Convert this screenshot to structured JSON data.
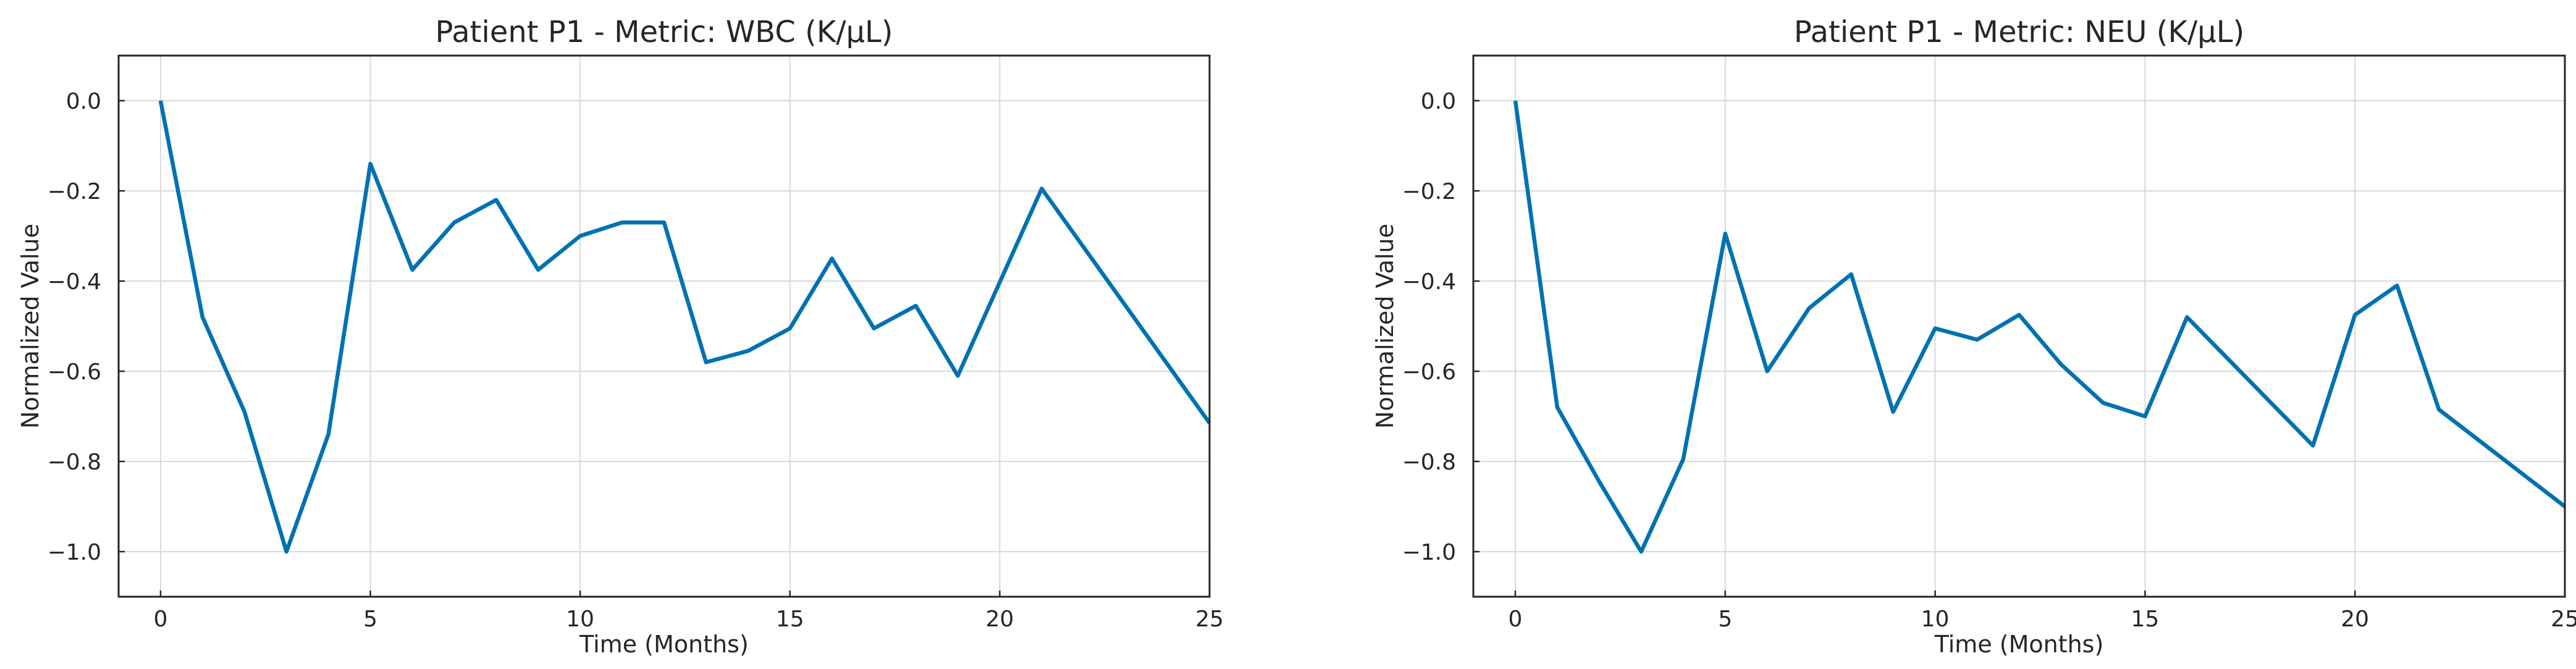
{
  "chart_data": [
    {
      "type": "line",
      "title": "Patient P1 - Metric: WBC (K/µL)",
      "xlabel": "Time (Months)",
      "ylabel": "Normalized Value",
      "xlim": [
        -1,
        25
      ],
      "ylim": [
        -1.1,
        0.1
      ],
      "xticks": [
        0,
        5,
        10,
        15,
        20,
        25
      ],
      "yticks": [
        0.0,
        -0.2,
        -0.4,
        -0.6,
        -0.8,
        -1.0
      ],
      "xtick_labels": [
        "0",
        "5",
        "10",
        "15",
        "20",
        "25"
      ],
      "ytick_labels": [
        "0.0",
        "−0.2",
        "−0.4",
        "−0.6",
        "−0.8",
        "−1.0"
      ],
      "grid": true,
      "color": "#0072b2",
      "series": [
        {
          "x": [
            0,
            1,
            2,
            3,
            4,
            5,
            6,
            7,
            8,
            9,
            10,
            11,
            12,
            13,
            14,
            15,
            16,
            17,
            18,
            19,
            21,
            25
          ],
          "y": [
            0.0,
            -0.48,
            -0.69,
            -1.0,
            -0.74,
            -0.14,
            -0.375,
            -0.27,
            -0.22,
            -0.375,
            -0.3,
            -0.27,
            -0.27,
            -0.58,
            -0.555,
            -0.505,
            -0.35,
            -0.505,
            -0.455,
            -0.61,
            -0.195,
            -0.715
          ]
        }
      ]
    },
    {
      "type": "line",
      "title": "Patient P1 - Metric: NEU (K/µL)",
      "xlabel": "Time (Months)",
      "ylabel": "Normalized Value",
      "xlim": [
        -1,
        25
      ],
      "ylim": [
        -1.1,
        0.1
      ],
      "xticks": [
        0,
        5,
        10,
        15,
        20,
        25
      ],
      "yticks": [
        0.0,
        -0.2,
        -0.4,
        -0.6,
        -0.8,
        -1.0
      ],
      "xtick_labels": [
        "0",
        "5",
        "10",
        "15",
        "20",
        "25"
      ],
      "ytick_labels": [
        "0.0",
        "−0.2",
        "−0.4",
        "−0.6",
        "−0.8",
        "−1.0"
      ],
      "grid": true,
      "color": "#0072b2",
      "series": [
        {
          "x": [
            0,
            1,
            2,
            3,
            4,
            5,
            6,
            7,
            8,
            9,
            10,
            11,
            12,
            13,
            14,
            15,
            16,
            17,
            19,
            20,
            21,
            22,
            25
          ],
          "y": [
            0.0,
            -0.68,
            -0.845,
            -1.0,
            -0.795,
            -0.295,
            -0.6,
            -0.46,
            -0.385,
            -0.69,
            -0.505,
            -0.53,
            -0.475,
            -0.585,
            -0.67,
            -0.7,
            -0.48,
            -0.575,
            -0.765,
            -0.475,
            -0.41,
            -0.685,
            -0.9
          ]
        }
      ]
    }
  ]
}
